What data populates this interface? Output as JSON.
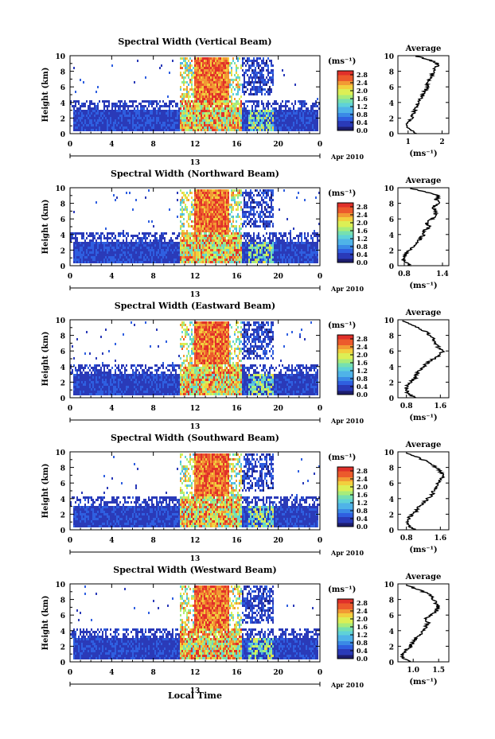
{
  "figure": {
    "xlabel": "Local Time",
    "date_label": "Apr 2010",
    "ylabel": "Height (km)",
    "colorbar_unit": "(ms⁻¹)",
    "average_title": "Average",
    "average_xlabel": "(ms⁻¹)",
    "colormap": [
      "#1d1d6e",
      "#2a3ab8",
      "#2f5fe0",
      "#3a8ae6",
      "#4fb3e8",
      "#5fd2d8",
      "#76e0b0",
      "#a8ec7a",
      "#dcef55",
      "#f2cf3e",
      "#f29a34",
      "#ec5a2c",
      "#e0302a"
    ]
  },
  "chart_data": [
    {
      "type": "heatmap",
      "title": "Spectral Width (Vertical Beam)",
      "x_ticks": [
        "0",
        "4",
        "8",
        "12",
        "16",
        "20",
        "0"
      ],
      "x_sub_label": "13",
      "y_ticks": [
        "0",
        "2",
        "4",
        "6",
        "8",
        "10"
      ],
      "xlim": [
        0,
        24
      ],
      "ylim": [
        0,
        10
      ],
      "colorbar_ticks": [
        "0.0",
        "0.4",
        "0.8",
        "1.2",
        "1.6",
        "2.0",
        "2.4",
        "2.8"
      ],
      "colorbar_range": [
        0,
        3.0
      ],
      "average": {
        "type": "line",
        "x_ticks": [
          "1",
          "2"
        ],
        "xlim": [
          0.7,
          2.2
        ],
        "y_ticks": [
          "0",
          "2",
          "4",
          "6",
          "8",
          "10"
        ],
        "ylim": [
          0,
          10
        ],
        "profile": [
          [
            0.0,
            1.2
          ],
          [
            0.5,
            1.05
          ],
          [
            1.0,
            0.95
          ],
          [
            1.5,
            1.0
          ],
          [
            2.0,
            1.1
          ],
          [
            2.5,
            1.15
          ],
          [
            3.0,
            1.2
          ],
          [
            3.5,
            1.25
          ],
          [
            4.0,
            1.3
          ],
          [
            4.5,
            1.35
          ],
          [
            5.0,
            1.45
          ],
          [
            5.5,
            1.5
          ],
          [
            6.0,
            1.55
          ],
          [
            6.5,
            1.6
          ],
          [
            7.0,
            1.65
          ],
          [
            7.5,
            1.7
          ],
          [
            8.0,
            1.75
          ],
          [
            8.5,
            1.8
          ],
          [
            9.0,
            1.9
          ],
          [
            9.5,
            1.6
          ],
          [
            10.0,
            1.2
          ]
        ]
      }
    },
    {
      "type": "heatmap",
      "title": "Spectral Width (Northward Beam)",
      "x_ticks": [
        "0",
        "4",
        "8",
        "12",
        "16",
        "20",
        "0"
      ],
      "x_sub_label": "13",
      "y_ticks": [
        "0",
        "2",
        "4",
        "6",
        "8",
        "10"
      ],
      "xlim": [
        0,
        24
      ],
      "ylim": [
        0,
        10
      ],
      "colorbar_ticks": [
        "0.0",
        "0.4",
        "0.8",
        "1.2",
        "1.6",
        "2.0",
        "2.4",
        "2.8"
      ],
      "colorbar_range": [
        0,
        3.0
      ],
      "average": {
        "type": "line",
        "x_ticks": [
          "0.8",
          "1.4"
        ],
        "xlim": [
          0.7,
          1.5
        ],
        "y_ticks": [
          "0",
          "2",
          "4",
          "6",
          "8",
          "10"
        ],
        "ylim": [
          0,
          10
        ],
        "profile": [
          [
            0.0,
            0.9
          ],
          [
            0.5,
            0.8
          ],
          [
            1.0,
            0.78
          ],
          [
            1.5,
            0.82
          ],
          [
            2.0,
            0.88
          ],
          [
            2.5,
            0.95
          ],
          [
            3.0,
            1.0
          ],
          [
            3.5,
            1.05
          ],
          [
            4.0,
            1.12
          ],
          [
            4.5,
            1.1
          ],
          [
            5.0,
            1.2
          ],
          [
            5.5,
            1.15
          ],
          [
            6.0,
            1.25
          ],
          [
            6.5,
            1.28
          ],
          [
            7.0,
            1.3
          ],
          [
            7.5,
            1.25
          ],
          [
            8.0,
            1.33
          ],
          [
            8.5,
            1.3
          ],
          [
            9.0,
            1.35
          ],
          [
            9.5,
            1.1
          ],
          [
            10.0,
            0.85
          ]
        ]
      }
    },
    {
      "type": "heatmap",
      "title": "Spectral Width (Eastward Beam)",
      "x_ticks": [
        "0",
        "4",
        "8",
        "12",
        "16",
        "20",
        "0"
      ],
      "x_sub_label": "13",
      "y_ticks": [
        "0",
        "2",
        "4",
        "6",
        "8",
        "10"
      ],
      "xlim": [
        0,
        24
      ],
      "ylim": [
        0,
        10
      ],
      "colorbar_ticks": [
        "0.0",
        "0.4",
        "0.8",
        "1.2",
        "1.6",
        "2.0",
        "2.4",
        "2.8"
      ],
      "colorbar_range": [
        0,
        3.0
      ],
      "average": {
        "type": "line",
        "x_ticks": [
          "0.8",
          "1.6"
        ],
        "xlim": [
          0.6,
          1.8
        ],
        "y_ticks": [
          "0",
          "2",
          "4",
          "6",
          "8",
          "10"
        ],
        "ylim": [
          0,
          10
        ],
        "profile": [
          [
            0.0,
            1.0
          ],
          [
            0.5,
            0.85
          ],
          [
            1.0,
            0.78
          ],
          [
            1.5,
            0.82
          ],
          [
            2.0,
            0.9
          ],
          [
            2.5,
            1.0
          ],
          [
            3.0,
            1.05
          ],
          [
            3.5,
            1.1
          ],
          [
            4.0,
            1.2
          ],
          [
            4.5,
            1.3
          ],
          [
            5.0,
            1.45
          ],
          [
            5.5,
            1.6
          ],
          [
            6.0,
            1.65
          ],
          [
            6.5,
            1.55
          ],
          [
            7.0,
            1.5
          ],
          [
            7.5,
            1.45
          ],
          [
            8.0,
            1.35
          ],
          [
            8.5,
            1.25
          ],
          [
            9.0,
            1.05
          ],
          [
            9.5,
            0.85
          ],
          [
            10.0,
            0.7
          ]
        ]
      }
    },
    {
      "type": "heatmap",
      "title": "Spectral Width (Southward Beam)",
      "x_ticks": [
        "0",
        "4",
        "8",
        "12",
        "16",
        "20",
        "0"
      ],
      "x_sub_label": "13",
      "y_ticks": [
        "0",
        "2",
        "4",
        "6",
        "8",
        "10"
      ],
      "xlim": [
        0,
        24
      ],
      "ylim": [
        0,
        10
      ],
      "colorbar_ticks": [
        "0.0",
        "0.4",
        "0.8",
        "1.2",
        "1.6",
        "2.0",
        "2.4",
        "2.8"
      ],
      "colorbar_range": [
        0,
        3.0
      ],
      "average": {
        "type": "line",
        "x_ticks": [
          "0.8",
          "1.6"
        ],
        "xlim": [
          0.6,
          1.8
        ],
        "y_ticks": [
          "0",
          "2",
          "4",
          "6",
          "8",
          "10"
        ],
        "ylim": [
          0,
          10
        ],
        "profile": [
          [
            0.0,
            1.0
          ],
          [
            0.5,
            0.85
          ],
          [
            1.0,
            0.8
          ],
          [
            1.5,
            0.85
          ],
          [
            2.0,
            0.95
          ],
          [
            2.5,
            1.05
          ],
          [
            3.0,
            1.1
          ],
          [
            3.5,
            1.2
          ],
          [
            4.0,
            1.3
          ],
          [
            4.5,
            1.4
          ],
          [
            5.0,
            1.45
          ],
          [
            5.5,
            1.5
          ],
          [
            6.0,
            1.55
          ],
          [
            6.5,
            1.6
          ],
          [
            7.0,
            1.68
          ],
          [
            7.5,
            1.6
          ],
          [
            8.0,
            1.5
          ],
          [
            8.5,
            1.4
          ],
          [
            9.0,
            1.2
          ],
          [
            9.5,
            0.95
          ],
          [
            10.0,
            0.75
          ]
        ]
      }
    },
    {
      "type": "heatmap",
      "title": "Spectral Width (Westward Beam)",
      "x_ticks": [
        "0",
        "4",
        "8",
        "12",
        "16",
        "20",
        "0"
      ],
      "x_sub_label": "13",
      "y_ticks": [
        "0",
        "2",
        "4",
        "6",
        "8",
        "10"
      ],
      "xlim": [
        0,
        24
      ],
      "ylim": [
        0,
        10
      ],
      "colorbar_ticks": [
        "0.0",
        "0.4",
        "0.8",
        "1.2",
        "1.6",
        "2.0",
        "2.4",
        "2.8"
      ],
      "colorbar_range": [
        0,
        3.0
      ],
      "average": {
        "type": "line",
        "x_ticks": [
          "1.0",
          "1.5"
        ],
        "xlim": [
          0.7,
          1.7
        ],
        "y_ticks": [
          "0",
          "2",
          "4",
          "6",
          "8",
          "10"
        ],
        "ylim": [
          0,
          10
        ],
        "profile": [
          [
            0.0,
            0.95
          ],
          [
            0.5,
            0.82
          ],
          [
            1.0,
            0.78
          ],
          [
            1.5,
            0.85
          ],
          [
            2.0,
            0.95
          ],
          [
            2.5,
            1.0
          ],
          [
            3.0,
            1.05
          ],
          [
            3.5,
            1.15
          ],
          [
            4.0,
            1.2
          ],
          [
            4.5,
            1.25
          ],
          [
            5.0,
            1.3
          ],
          [
            5.5,
            1.25
          ],
          [
            6.0,
            1.35
          ],
          [
            6.5,
            1.45
          ],
          [
            7.0,
            1.5
          ],
          [
            7.5,
            1.45
          ],
          [
            8.0,
            1.4
          ],
          [
            8.5,
            1.35
          ],
          [
            9.0,
            1.2
          ],
          [
            9.5,
            1.0
          ],
          [
            10.0,
            0.85
          ]
        ]
      }
    }
  ]
}
